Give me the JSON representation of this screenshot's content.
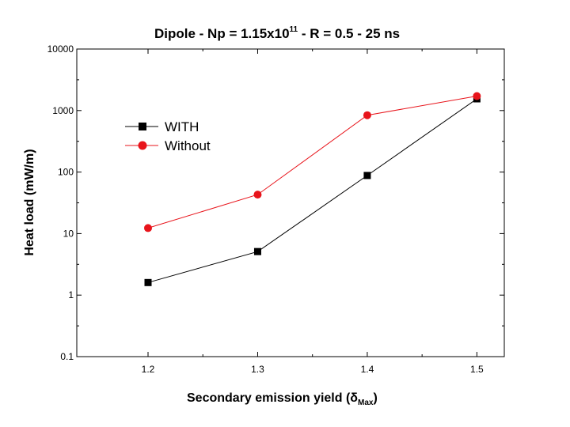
{
  "chart_data": {
    "type": "line",
    "title": {
      "prefix": "Dipole - Np = 1.15x10",
      "superscript": "11",
      "suffix": " - R = 0.5 - 25 ns"
    },
    "xlabel": {
      "prefix": "Secondary emission yield (",
      "symbol": "δ",
      "subscript": "Max",
      "suffix": ")"
    },
    "ylabel": "Heat load (mW/m)",
    "x": [
      1.2,
      1.3,
      1.4,
      1.5
    ],
    "x_tick_labels": [
      "1.2",
      "1.3",
      "1.4",
      "1.5"
    ],
    "xlim": [
      1.135,
      1.525
    ],
    "y_scale": "log",
    "ylim": [
      0.1,
      10000
    ],
    "y_ticks": [
      0.1,
      1,
      10,
      100,
      1000,
      10000
    ],
    "y_tick_labels": [
      "0.1",
      "1",
      "10",
      "100",
      "1000",
      "10000"
    ],
    "series": [
      {
        "name": "WITH",
        "marker": "square",
        "color": "#000000",
        "values": [
          1.6,
          5.1,
          88,
          1550
        ]
      },
      {
        "name": "Without",
        "marker": "circle",
        "color": "#e8141b",
        "values": [
          12.3,
          43,
          840,
          1720
        ]
      }
    ],
    "legend": {
      "placement": "upper-left",
      "entries": [
        "WITH",
        "Without"
      ]
    }
  }
}
